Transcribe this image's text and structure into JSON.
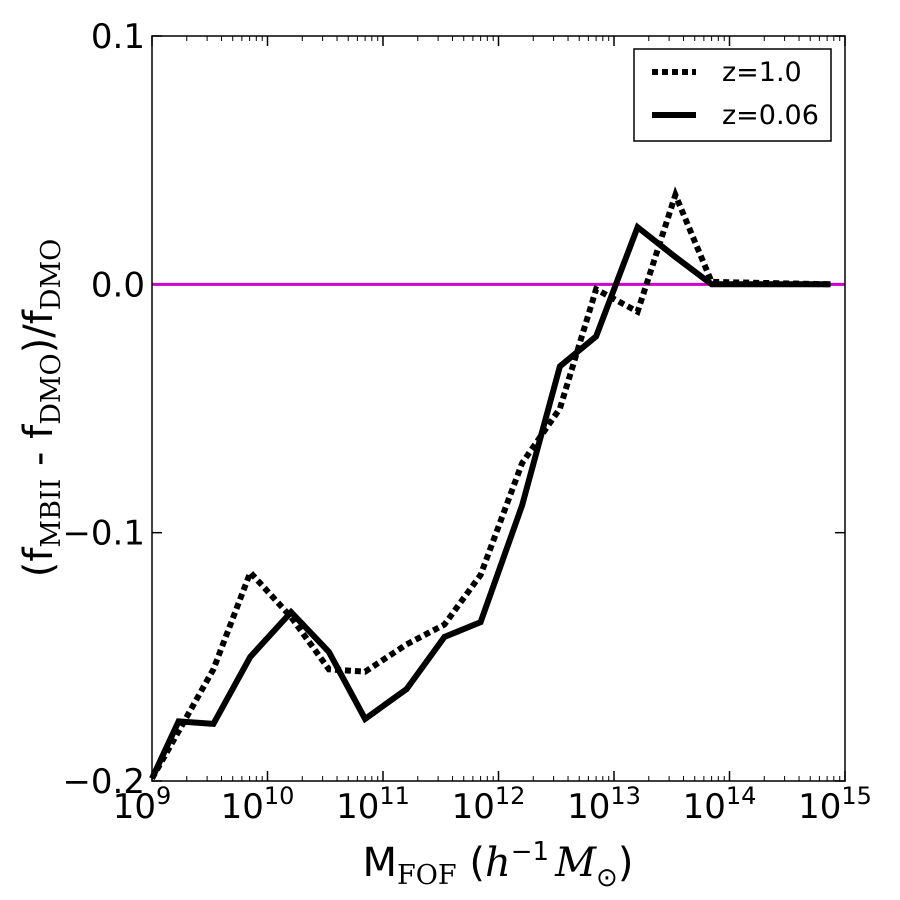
{
  "chart_data": {
    "type": "line",
    "xscale": "log",
    "xlim": [
      1000000000.0,
      1000000000000000.0
    ],
    "ylim": [
      -0.2,
      0.1
    ],
    "x_ticks": [
      {
        "base": "10",
        "exp": "9"
      },
      {
        "base": "10",
        "exp": "10"
      },
      {
        "base": "10",
        "exp": "11"
      },
      {
        "base": "10",
        "exp": "12"
      },
      {
        "base": "10",
        "exp": "13"
      },
      {
        "base": "10",
        "exp": "14"
      },
      {
        "base": "10",
        "exp": "15"
      }
    ],
    "y_ticks": [
      {
        "value": 0.1,
        "label": "0.1"
      },
      {
        "value": 0.0,
        "label": "0.0"
      },
      {
        "value": -0.1,
        "label": "−0.1"
      },
      {
        "value": -0.2,
        "label": "−0.2"
      }
    ],
    "xlabel": {
      "main": "M",
      "sub": "FOF",
      "open": " (",
      "h": "h",
      "exp": "−1",
      "m": "M",
      "sun": "⊙",
      "close": ")"
    },
    "ylabel": {
      "p1": "(f",
      "s1": "MBII",
      "p2": " - f",
      "s2": "DMO",
      "p3": ")/f",
      "s3": "DMO"
    },
    "reference_line": {
      "y": 0.0,
      "color": "#cc00cc"
    },
    "series": [
      {
        "name": "z=1.0",
        "style": "dotted",
        "color": "#000000",
        "x": [
          1000000000.0,
          1700000000.0,
          3400000000.0,
          7100000000.0,
          16000000000.0,
          34000000000.0,
          70000000000.0,
          160000000000.0,
          340000000000.0,
          700000000000.0,
          1600000000000.0,
          3400000000000.0,
          7000000000000.0,
          16000000000000.0,
          34000000000000.0,
          70000000000000.0,
          750000000000000.0
        ],
        "y": [
          -0.199,
          -0.18,
          -0.155,
          -0.116,
          -0.134,
          -0.155,
          -0.156,
          -0.145,
          -0.137,
          -0.117,
          -0.072,
          -0.05,
          -0.002,
          -0.011,
          0.036,
          0.001,
          0.0
        ]
      },
      {
        "name": "z=0.06",
        "style": "solid",
        "color": "#000000",
        "x": [
          1000000000.0,
          1700000000.0,
          3400000000.0,
          7100000000.0,
          16000000000.0,
          34000000000.0,
          70000000000.0,
          160000000000.0,
          340000000000.0,
          700000000000.0,
          1600000000000.0,
          3400000000000.0,
          7000000000000.0,
          16000000000000.0,
          34000000000000.0,
          70000000000000.0,
          750000000000000.0
        ],
        "y": [
          -0.199,
          -0.176,
          -0.177,
          -0.15,
          -0.132,
          -0.148,
          -0.175,
          -0.163,
          -0.142,
          -0.136,
          -0.089,
          -0.033,
          -0.021,
          0.023,
          0.011,
          0.0,
          0.0
        ]
      }
    ],
    "legend": {
      "position": "upper right"
    }
  }
}
